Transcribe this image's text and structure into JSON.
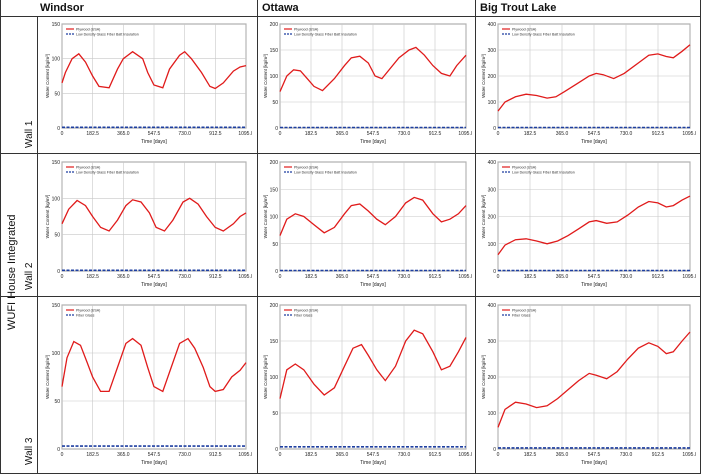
{
  "group_label": "WUFI House Integrated",
  "columns": [
    "Windsor",
    "Ottawa",
    "Big Trout Lake"
  ],
  "rows": [
    "Wall 1",
    "Wall 2",
    "Wall 3"
  ],
  "colors": {
    "series1": "#e01b1b",
    "series2": "#1e3fa0",
    "grid": "#c8c8c8",
    "border": "#333333"
  },
  "chart_data": [
    {
      "type": "line",
      "location": "Windsor",
      "wall": "Wall 1",
      "xlabel": "Time [days]",
      "ylabel": "Water Content [kg/m³]",
      "xlim": [
        0,
        1095.0
      ],
      "ylim": [
        0,
        150
      ],
      "xticks": [
        "0",
        "182.5",
        "365.0",
        "547.5",
        "730.0",
        "912.5",
        "1095.0"
      ],
      "yticks": [
        "0",
        "50",
        "100",
        "150"
      ],
      "series": [
        {
          "name": "Plywood (USA)",
          "x": [
            0,
            20,
            60,
            100,
            140,
            182,
            220,
            280,
            330,
            365,
            420,
            480,
            510,
            547,
            600,
            640,
            700,
            730,
            770,
            830,
            880,
            912,
            960,
            1020,
            1060,
            1095
          ],
          "y": [
            65,
            80,
            100,
            107,
            95,
            75,
            60,
            58,
            85,
            100,
            110,
            100,
            80,
            62,
            58,
            85,
            105,
            110,
            100,
            80,
            60,
            57,
            65,
            82,
            88,
            90
          ]
        },
        {
          "name": "Low Density Glass Fiber Batt Insulation",
          "x": [
            0,
            1095
          ],
          "y": [
            1,
            1
          ]
        }
      ]
    },
    {
      "type": "line",
      "location": "Ottawa",
      "wall": "Wall 1",
      "xlabel": "Time [days]",
      "ylabel": "Water Content [kg/m³]",
      "xlim": [
        0,
        1095.0
      ],
      "ylim": [
        0,
        200
      ],
      "xticks": [
        "0",
        "182.5",
        "365.0",
        "547.5",
        "730.0",
        "912.5",
        "1095.0"
      ],
      "yticks": [
        "0",
        "50",
        "100",
        "150",
        "200"
      ],
      "series": [
        {
          "name": "Plywood (USA)",
          "x": [
            0,
            40,
            80,
            120,
            160,
            200,
            250,
            320,
            380,
            420,
            470,
            520,
            560,
            600,
            700,
            760,
            800,
            850,
            900,
            950,
            1000,
            1040,
            1095
          ],
          "y": [
            70,
            100,
            112,
            110,
            95,
            80,
            72,
            95,
            120,
            135,
            138,
            125,
            100,
            95,
            135,
            150,
            155,
            140,
            120,
            105,
            100,
            120,
            140
          ]
        },
        {
          "name": "Low Density Glass Fiber Batt Insulation",
          "x": [
            0,
            1095
          ],
          "y": [
            1,
            1
          ]
        }
      ]
    },
    {
      "type": "line",
      "location": "Big Trout Lake",
      "wall": "Wall 1",
      "xlabel": "Time [days]",
      "ylabel": "Water Content [kg/m³]",
      "xlim": [
        0,
        1095.0
      ],
      "ylim": [
        0,
        400
      ],
      "xticks": [
        "0",
        "182.5",
        "365.0",
        "547.5",
        "730.0",
        "912.5",
        "1095.0"
      ],
      "yticks": [
        "0",
        "100",
        "200",
        "300",
        "400"
      ],
      "series": [
        {
          "name": "Plywood (USA)",
          "x": [
            0,
            40,
            100,
            160,
            220,
            280,
            330,
            380,
            450,
            520,
            560,
            600,
            660,
            720,
            800,
            860,
            912,
            960,
            1000,
            1050,
            1095
          ],
          "y": [
            65,
            100,
            120,
            130,
            125,
            115,
            120,
            140,
            170,
            200,
            210,
            205,
            190,
            210,
            250,
            280,
            285,
            275,
            270,
            295,
            320
          ]
        },
        {
          "name": "Low Density Glass Fiber Batt Insulation",
          "x": [
            0,
            1095
          ],
          "y": [
            2,
            2
          ]
        }
      ]
    },
    {
      "type": "line",
      "location": "Windsor",
      "wall": "Wall 2",
      "xlabel": "Time [days]",
      "ylabel": "Water Content [kg/m³]",
      "xlim": [
        0,
        1095.0
      ],
      "ylim": [
        0,
        150
      ],
      "xticks": [
        "0",
        "182.5",
        "365.0",
        "547.5",
        "730.0",
        "912.5",
        "1095.0"
      ],
      "yticks": [
        "0",
        "50",
        "100",
        "150"
      ],
      "series": [
        {
          "name": "Plywood (USA)",
          "x": [
            0,
            40,
            90,
            140,
            182,
            230,
            280,
            330,
            380,
            420,
            470,
            520,
            560,
            610,
            660,
            720,
            760,
            810,
            860,
            912,
            960,
            1020,
            1060,
            1095
          ],
          "y": [
            65,
            85,
            97,
            90,
            75,
            60,
            55,
            70,
            90,
            98,
            95,
            80,
            60,
            55,
            70,
            95,
            100,
            92,
            75,
            60,
            55,
            65,
            75,
            80
          ]
        },
        {
          "name": "Low Density Glass Fiber Batt Insulation",
          "x": [
            0,
            1095
          ],
          "y": [
            1,
            1
          ]
        }
      ]
    },
    {
      "type": "line",
      "location": "Ottawa",
      "wall": "Wall 2",
      "xlabel": "Time [days]",
      "ylabel": "Water Content [kg/m³]",
      "xlim": [
        0,
        1095.0
      ],
      "ylim": [
        0,
        200
      ],
      "xticks": [
        "0",
        "182.5",
        "365.0",
        "547.5",
        "730.0",
        "912.5",
        "1095.0"
      ],
      "yticks": [
        "0",
        "50",
        "100",
        "150",
        "200"
      ],
      "series": [
        {
          "name": "Plywood (USA)",
          "x": [
            0,
            40,
            90,
            140,
            200,
            260,
            320,
            380,
            420,
            470,
            520,
            570,
            620,
            680,
            740,
            790,
            840,
            900,
            950,
            1000,
            1050,
            1095
          ],
          "y": [
            65,
            95,
            105,
            100,
            85,
            70,
            80,
            105,
            120,
            123,
            110,
            95,
            85,
            100,
            125,
            135,
            130,
            105,
            90,
            95,
            105,
            120
          ]
        },
        {
          "name": "Low Density Glass Fiber Batt Insulation",
          "x": [
            0,
            1095
          ],
          "y": [
            1,
            1
          ]
        }
      ]
    },
    {
      "type": "line",
      "location": "Big Trout Lake",
      "wall": "Wall 2",
      "xlabel": "Time [days]",
      "ylabel": "Water Content [kg/m³]",
      "xlim": [
        0,
        1095.0
      ],
      "ylim": [
        0,
        400
      ],
      "xticks": [
        "0",
        "182.5",
        "365.0",
        "547.5",
        "730.0",
        "912.5",
        "1095.0"
      ],
      "yticks": [
        "0",
        "100",
        "200",
        "300",
        "400"
      ],
      "series": [
        {
          "name": "Plywood (USA)",
          "x": [
            0,
            40,
            100,
            160,
            220,
            280,
            340,
            400,
            460,
            520,
            560,
            620,
            680,
            740,
            800,
            860,
            912,
            960,
            1000,
            1050,
            1095
          ],
          "y": [
            60,
            95,
            115,
            118,
            110,
            100,
            110,
            130,
            155,
            180,
            185,
            175,
            180,
            205,
            235,
            255,
            250,
            235,
            240,
            260,
            275
          ]
        },
        {
          "name": "Low Density Glass Fiber Batt Insulation",
          "x": [
            0,
            1095
          ],
          "y": [
            2,
            2
          ]
        }
      ]
    },
    {
      "type": "line",
      "location": "Windsor",
      "wall": "Wall 3",
      "xlabel": "Time [days]",
      "ylabel": "Water Content [kg/m³]",
      "xlim": [
        0,
        1095.0
      ],
      "ylim": [
        0,
        150
      ],
      "xticks": [
        "0",
        "182.5",
        "365.0",
        "547.5",
        "730.0",
        "912.5",
        "1095.0"
      ],
      "yticks": [
        "0",
        "50",
        "100",
        "150"
      ],
      "series": [
        {
          "name": "Plywood (USA)",
          "x": [
            0,
            30,
            70,
            110,
            150,
            182,
            230,
            280,
            330,
            380,
            420,
            470,
            510,
            547,
            600,
            650,
            700,
            750,
            790,
            840,
            880,
            912,
            960,
            1010,
            1060,
            1095
          ],
          "y": [
            65,
            95,
            112,
            108,
            90,
            75,
            60,
            60,
            85,
            110,
            115,
            108,
            85,
            65,
            60,
            85,
            110,
            115,
            105,
            85,
            65,
            60,
            62,
            75,
            82,
            90
          ]
        },
        {
          "name": "Fiber Glass",
          "x": [
            0,
            1095
          ],
          "y": [
            3,
            3
          ]
        }
      ]
    },
    {
      "type": "line",
      "location": "Ottawa",
      "wall": "Wall 3",
      "xlabel": "Time [days]",
      "ylabel": "Water Content [kg/m³]",
      "xlim": [
        0,
        1095.0
      ],
      "ylim": [
        0,
        200
      ],
      "xticks": [
        "0",
        "182.5",
        "365.0",
        "547.5",
        "730.0",
        "912.5",
        "1095.0"
      ],
      "yticks": [
        "0",
        "50",
        "100",
        "150",
        "200"
      ],
      "series": [
        {
          "name": "Plywood (USA)",
          "x": [
            0,
            40,
            90,
            140,
            200,
            260,
            320,
            380,
            430,
            480,
            520,
            570,
            620,
            680,
            740,
            790,
            840,
            900,
            950,
            1000,
            1050,
            1095
          ],
          "y": [
            70,
            110,
            118,
            110,
            90,
            75,
            85,
            115,
            140,
            145,
            130,
            110,
            95,
            115,
            150,
            165,
            160,
            135,
            110,
            115,
            135,
            155
          ]
        },
        {
          "name": "Fiber Glass",
          "x": [
            0,
            1095
          ],
          "y": [
            3,
            3
          ]
        }
      ]
    },
    {
      "type": "line",
      "location": "Big Trout Lake",
      "wall": "Wall 3",
      "xlabel": "Time [days]",
      "ylabel": "Water Content [kg/m³]",
      "xlim": [
        0,
        1095.0
      ],
      "ylim": [
        0,
        400
      ],
      "xticks": [
        "0",
        "182.5",
        "365.0",
        "547.5",
        "730.0",
        "912.5",
        "1095.0"
      ],
      "yticks": [
        "0",
        "100",
        "200",
        "300",
        "400"
      ],
      "series": [
        {
          "name": "Plywood (USA)",
          "x": [
            0,
            40,
            100,
            160,
            220,
            280,
            340,
            400,
            460,
            520,
            560,
            620,
            680,
            740,
            800,
            860,
            912,
            960,
            1000,
            1050,
            1095
          ],
          "y": [
            60,
            110,
            130,
            125,
            115,
            120,
            140,
            165,
            190,
            210,
            205,
            195,
            215,
            250,
            280,
            295,
            285,
            265,
            270,
            300,
            325
          ]
        },
        {
          "name": "Fiber Glass",
          "x": [
            0,
            1095
          ],
          "y": [
            3,
            3
          ]
        }
      ]
    }
  ]
}
